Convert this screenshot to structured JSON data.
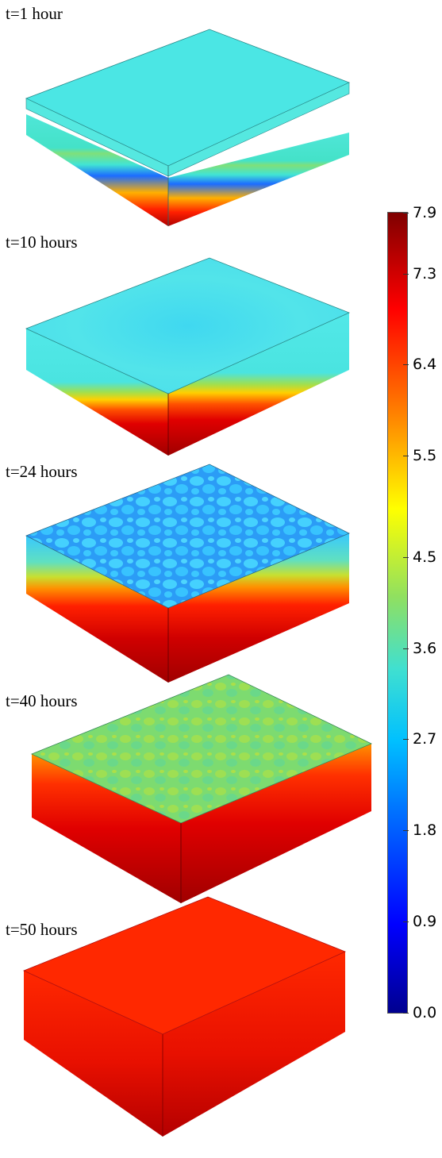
{
  "panels": [
    {
      "label": "t=1 hour"
    },
    {
      "label": "t=10 hours"
    },
    {
      "label": "t=24 hours"
    },
    {
      "label": "t=40 hours"
    },
    {
      "label": "t=50 hours"
    }
  ],
  "colorbar": {
    "min": 0.0,
    "max": 7.9,
    "ticks": [
      {
        "label": "7.9",
        "value": 7.9
      },
      {
        "label": "7.3",
        "value": 7.3
      },
      {
        "label": "6.4",
        "value": 6.4
      },
      {
        "label": "5.5",
        "value": 5.5
      },
      {
        "label": "4.5",
        "value": 4.5
      },
      {
        "label": "3.6",
        "value": 3.6
      },
      {
        "label": "2.7",
        "value": 2.7
      },
      {
        "label": "1.8",
        "value": 1.8
      },
      {
        "label": "0.9",
        "value": 0.9
      },
      {
        "label": "0.0",
        "value": 0.0
      }
    ],
    "colormap": [
      "#00008f",
      "#0000ff",
      "#00a0ff",
      "#40e0d0",
      "#7fd860",
      "#ffff00",
      "#ff8000",
      "#ff0000",
      "#7f0000"
    ]
  }
}
